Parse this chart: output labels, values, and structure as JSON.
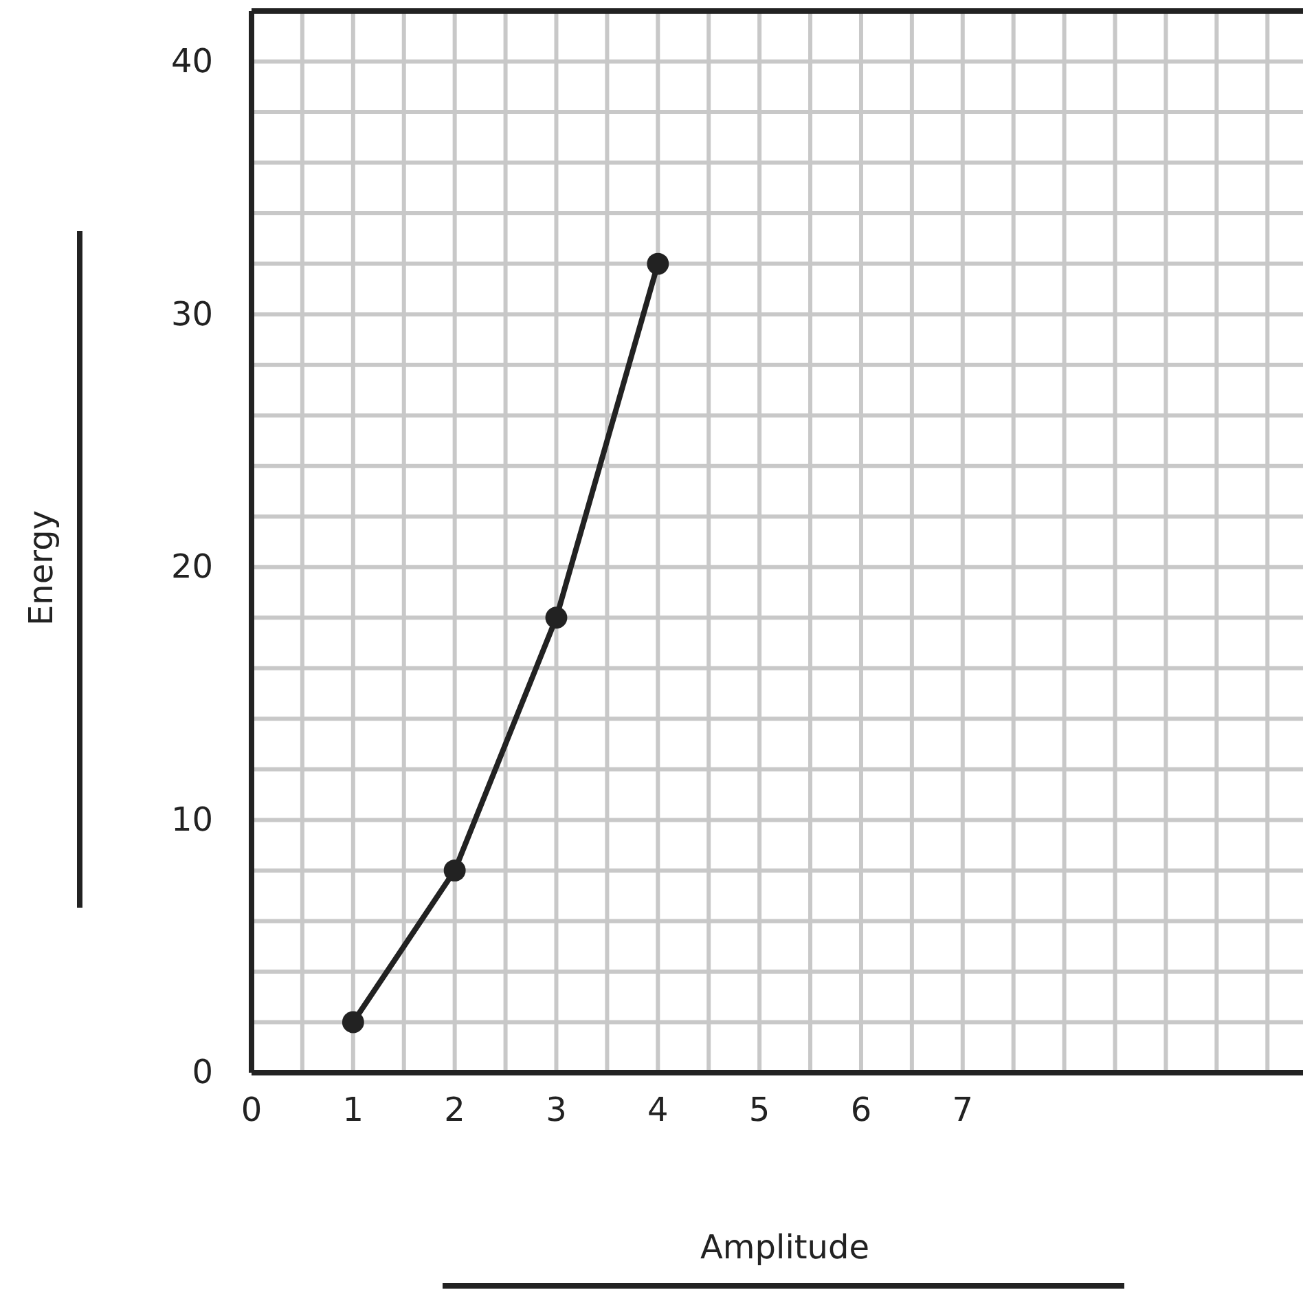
{
  "chart_data": {
    "type": "line",
    "xlabel": "Amplitude",
    "ylabel": "Energy",
    "x": [
      1,
      2,
      3,
      4
    ],
    "series": [
      {
        "color": "#222222",
        "values": [
          2,
          8,
          18,
          32
        ]
      }
    ],
    "xlim": [
      0,
      10.35
    ],
    "ylim": [
      0,
      42
    ],
    "xticks": [
      0,
      1,
      2,
      3,
      4,
      5,
      6,
      7
    ],
    "yticks": [
      0,
      10,
      20,
      30,
      40
    ],
    "grid": true,
    "marker": "circle",
    "line_style": "solid"
  }
}
